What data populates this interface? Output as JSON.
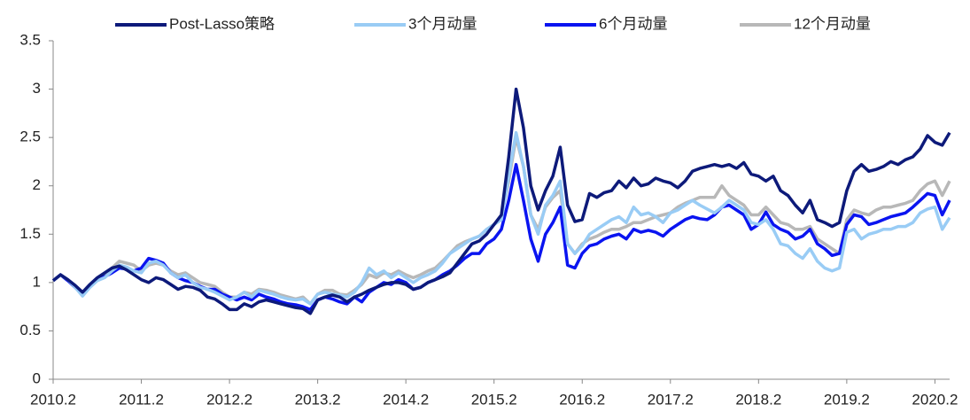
{
  "chart_data": {
    "type": "line",
    "categories": [
      "2010.2",
      null,
      null,
      null,
      null,
      null,
      null,
      null,
      null,
      null,
      null,
      null,
      "2011.2",
      null,
      null,
      null,
      null,
      null,
      null,
      null,
      null,
      null,
      null,
      null,
      "2012.2",
      null,
      null,
      null,
      null,
      null,
      null,
      null,
      null,
      null,
      null,
      null,
      "2013.2",
      null,
      null,
      null,
      null,
      null,
      null,
      null,
      null,
      null,
      null,
      null,
      "2014.2",
      null,
      null,
      null,
      null,
      null,
      null,
      null,
      null,
      null,
      null,
      null,
      "2015.2",
      null,
      null,
      null,
      null,
      null,
      null,
      null,
      null,
      null,
      null,
      null,
      "2016.2",
      null,
      null,
      null,
      null,
      null,
      null,
      null,
      null,
      null,
      null,
      null,
      "2017.2",
      null,
      null,
      null,
      null,
      null,
      null,
      null,
      null,
      null,
      null,
      null,
      "2018.2",
      null,
      null,
      null,
      null,
      null,
      null,
      null,
      null,
      null,
      null,
      null,
      "2019.2",
      null,
      null,
      null,
      null,
      null,
      null,
      null,
      null,
      null,
      null,
      null,
      "2020.2",
      null,
      null
    ],
    "series": [
      {
        "name": "Post-Lasso策略",
        "color": "#0d1a7a",
        "values": [
          1.02,
          1.08,
          1.03,
          0.97,
          0.9,
          0.98,
          1.05,
          1.1,
          1.15,
          1.17,
          1.13,
          1.08,
          1.03,
          1.0,
          1.05,
          1.03,
          0.98,
          0.93,
          0.96,
          0.95,
          0.92,
          0.85,
          0.83,
          0.78,
          0.72,
          0.72,
          0.78,
          0.75,
          0.8,
          0.82,
          0.8,
          0.78,
          0.76,
          0.74,
          0.73,
          0.68,
          0.82,
          0.85,
          0.87,
          0.85,
          0.8,
          0.85,
          0.88,
          0.92,
          0.95,
          0.98,
          1.0,
          1.0,
          0.98,
          0.93,
          0.95,
          1.0,
          1.03,
          1.06,
          1.1,
          1.2,
          1.3,
          1.4,
          1.43,
          1.5,
          1.6,
          1.7,
          2.3,
          3.0,
          2.6,
          2.0,
          1.75,
          1.95,
          2.1,
          2.4,
          1.8,
          1.63,
          1.65,
          1.92,
          1.88,
          1.93,
          1.95,
          2.05,
          1.98,
          2.08,
          2.0,
          2.02,
          2.08,
          2.05,
          2.03,
          1.98,
          2.05,
          2.15,
          2.18,
          2.2,
          2.22,
          2.2,
          2.22,
          2.18,
          2.24,
          2.12,
          2.1,
          2.05,
          2.1,
          1.95,
          1.9,
          1.8,
          1.72,
          1.85,
          1.65,
          1.62,
          1.58,
          1.62,
          1.95,
          2.15,
          2.22,
          2.15,
          2.17,
          2.2,
          2.25,
          2.22,
          2.27,
          2.3,
          2.38,
          2.52,
          2.45,
          2.42,
          2.55
        ]
      },
      {
        "name": "3个月动量",
        "color": "#99ccf5",
        "values": [
          1.02,
          1.08,
          1.03,
          0.95,
          0.86,
          0.95,
          1.02,
          1.05,
          1.12,
          1.18,
          1.16,
          1.12,
          1.1,
          1.2,
          1.22,
          1.18,
          1.1,
          1.05,
          1.08,
          1.0,
          0.95,
          0.93,
          0.9,
          0.86,
          0.82,
          0.85,
          0.9,
          0.85,
          0.92,
          0.9,
          0.88,
          0.85,
          0.83,
          0.82,
          0.83,
          0.78,
          0.88,
          0.9,
          0.88,
          0.87,
          0.85,
          0.9,
          1.0,
          1.15,
          1.08,
          1.12,
          1.05,
          1.1,
          1.05,
          1.0,
          1.05,
          1.08,
          1.12,
          1.2,
          1.3,
          1.35,
          1.4,
          1.45,
          1.48,
          1.55,
          1.6,
          1.65,
          2.1,
          2.55,
          2.2,
          1.7,
          1.5,
          1.8,
          1.9,
          2.05,
          1.4,
          1.3,
          1.38,
          1.5,
          1.55,
          1.6,
          1.65,
          1.68,
          1.62,
          1.78,
          1.7,
          1.72,
          1.68,
          1.62,
          1.72,
          1.75,
          1.8,
          1.85,
          1.8,
          1.76,
          1.72,
          1.78,
          1.85,
          1.8,
          1.75,
          1.62,
          1.6,
          1.65,
          1.55,
          1.4,
          1.38,
          1.3,
          1.25,
          1.35,
          1.22,
          1.15,
          1.12,
          1.15,
          1.52,
          1.55,
          1.45,
          1.5,
          1.52,
          1.55,
          1.55,
          1.58,
          1.58,
          1.62,
          1.72,
          1.76,
          1.78,
          1.55,
          1.67
        ]
      },
      {
        "name": "6个月动量",
        "color": "#0a14f0",
        "values": [
          1.02,
          1.08,
          1.02,
          0.95,
          0.88,
          0.96,
          1.03,
          1.06,
          1.1,
          1.15,
          1.14,
          1.12,
          1.15,
          1.25,
          1.23,
          1.2,
          1.1,
          1.05,
          1.02,
          1.0,
          0.96,
          0.93,
          0.93,
          0.88,
          0.85,
          0.82,
          0.85,
          0.82,
          0.88,
          0.85,
          0.83,
          0.8,
          0.78,
          0.77,
          0.75,
          0.72,
          0.82,
          0.85,
          0.83,
          0.8,
          0.78,
          0.85,
          0.8,
          0.9,
          0.95,
          1.0,
          0.98,
          1.03,
          1.0,
          0.93,
          0.95,
          1.0,
          1.03,
          1.08,
          1.12,
          1.18,
          1.25,
          1.3,
          1.3,
          1.4,
          1.45,
          1.55,
          1.85,
          2.22,
          1.85,
          1.45,
          1.22,
          1.5,
          1.62,
          1.78,
          1.18,
          1.15,
          1.3,
          1.38,
          1.4,
          1.45,
          1.48,
          1.5,
          1.45,
          1.55,
          1.52,
          1.54,
          1.52,
          1.48,
          1.55,
          1.6,
          1.65,
          1.68,
          1.66,
          1.65,
          1.7,
          1.78,
          1.8,
          1.75,
          1.7,
          1.55,
          1.6,
          1.73,
          1.6,
          1.55,
          1.52,
          1.45,
          1.48,
          1.55,
          1.4,
          1.35,
          1.28,
          1.3,
          1.6,
          1.7,
          1.68,
          1.6,
          1.62,
          1.65,
          1.68,
          1.7,
          1.72,
          1.78,
          1.85,
          1.92,
          1.9,
          1.7,
          1.85
        ]
      },
      {
        "name": "12个月动量",
        "color": "#b8b8b8",
        "values": [
          1.02,
          1.08,
          1.03,
          0.96,
          0.88,
          0.97,
          1.04,
          1.08,
          1.15,
          1.22,
          1.2,
          1.18,
          1.12,
          1.18,
          1.2,
          1.18,
          1.12,
          1.08,
          1.1,
          1.05,
          1.0,
          0.98,
          0.96,
          0.9,
          0.85,
          0.85,
          0.9,
          0.88,
          0.93,
          0.92,
          0.9,
          0.87,
          0.85,
          0.83,
          0.85,
          0.78,
          0.88,
          0.92,
          0.92,
          0.88,
          0.87,
          0.92,
          0.98,
          1.08,
          1.05,
          1.1,
          1.08,
          1.12,
          1.08,
          1.05,
          1.08,
          1.12,
          1.15,
          1.22,
          1.3,
          1.38,
          1.42,
          1.45,
          1.48,
          1.55,
          1.6,
          1.68,
          2.05,
          2.5,
          2.2,
          1.7,
          1.55,
          1.78,
          1.88,
          1.95,
          1.4,
          1.3,
          1.4,
          1.45,
          1.48,
          1.52,
          1.55,
          1.55,
          1.58,
          1.62,
          1.62,
          1.65,
          1.68,
          1.7,
          1.72,
          1.78,
          1.82,
          1.85,
          1.88,
          1.88,
          1.88,
          2.0,
          1.9,
          1.85,
          1.8,
          1.7,
          1.7,
          1.78,
          1.7,
          1.62,
          1.6,
          1.55,
          1.55,
          1.58,
          1.45,
          1.4,
          1.35,
          1.3,
          1.65,
          1.75,
          1.72,
          1.7,
          1.75,
          1.78,
          1.78,
          1.8,
          1.82,
          1.85,
          1.95,
          2.02,
          2.05,
          1.9,
          2.05
        ]
      }
    ],
    "ylim": [
      0,
      3.5
    ],
    "yticks": [
      0,
      0.5,
      1,
      1.5,
      2,
      2.5,
      3,
      3.5
    ],
    "grid": false,
    "legend": "top"
  }
}
